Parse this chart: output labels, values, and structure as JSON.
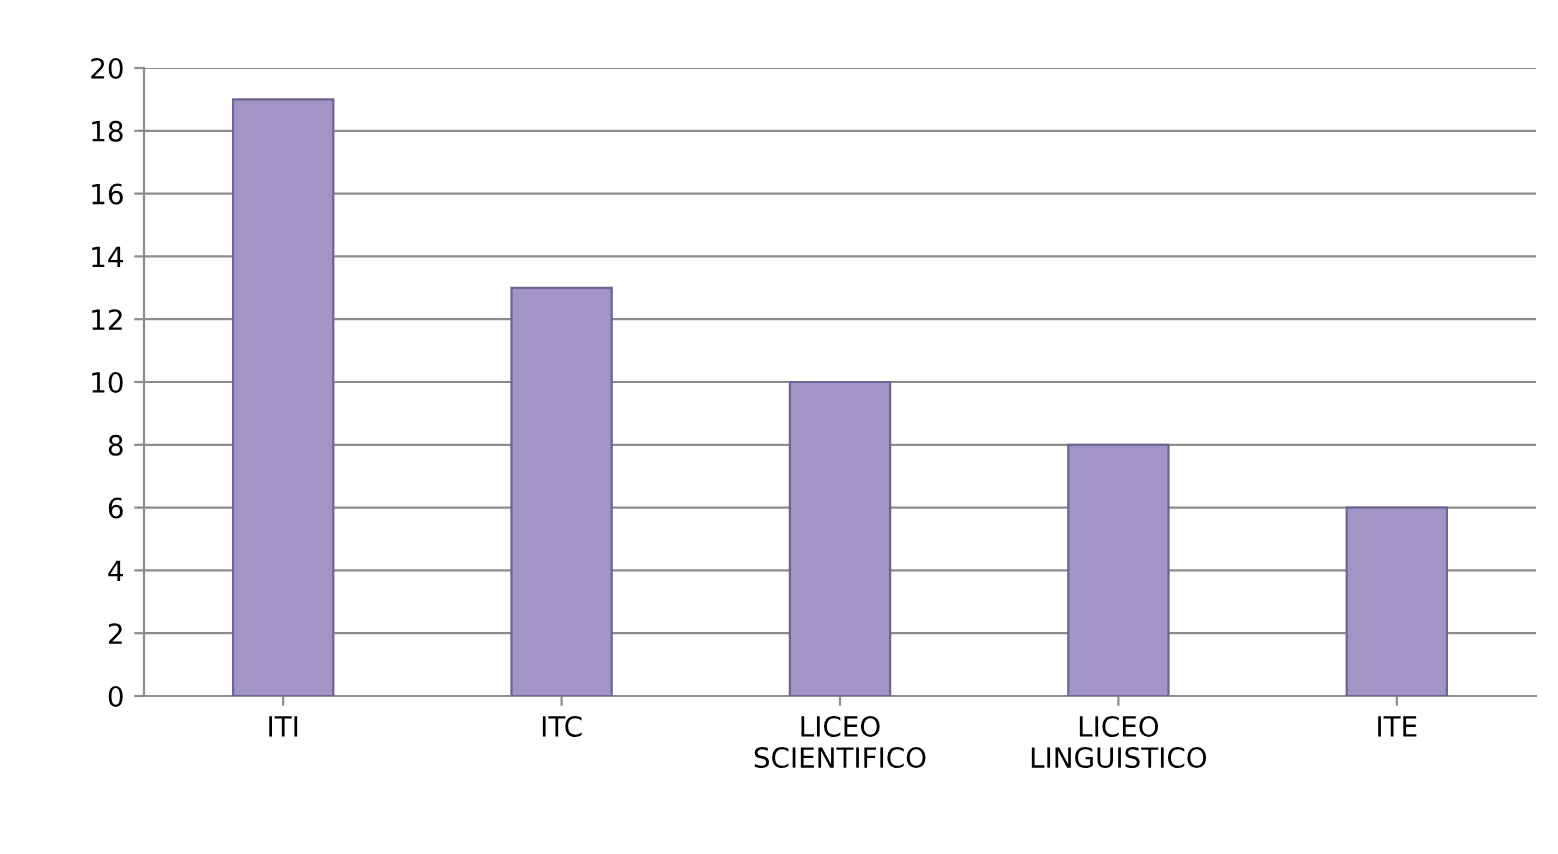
{
  "chart_data": {
    "type": "bar",
    "categories": [
      "ITI",
      "ITC",
      "LICEO\nSCIENTIFICO",
      "LICEO\nLINGUISTICO",
      "ITE"
    ],
    "values": [
      19,
      13,
      10,
      8,
      6
    ],
    "color": "#a294c4",
    "ylim": [
      0,
      20
    ],
    "yticks": [
      0,
      2,
      4,
      6,
      8,
      10,
      12,
      14,
      16,
      18,
      20
    ],
    "grid": "y",
    "legend": false
  }
}
